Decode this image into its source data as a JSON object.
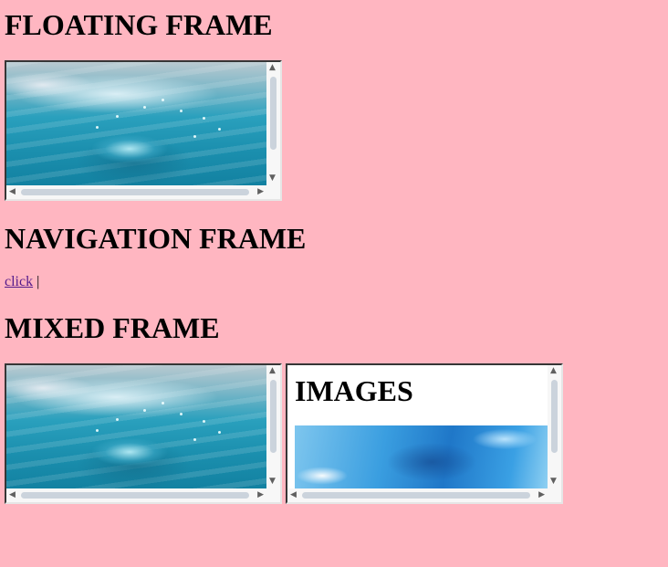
{
  "headings": {
    "floating": "FLOATING FRAME",
    "navigation": "NAVIGATION FRAME",
    "mixed": "MIXED FRAME"
  },
  "navigation": {
    "link_label": "click",
    "separator": "|"
  },
  "mixed_frame": {
    "right_frame_heading": "IMAGES"
  },
  "colors": {
    "page_background": "#ffb6c1",
    "visited_link": "#551a8b"
  },
  "icons": {
    "scroll_up": "▲",
    "scroll_down": "▼",
    "scroll_left": "◀",
    "scroll_right": "▶"
  }
}
